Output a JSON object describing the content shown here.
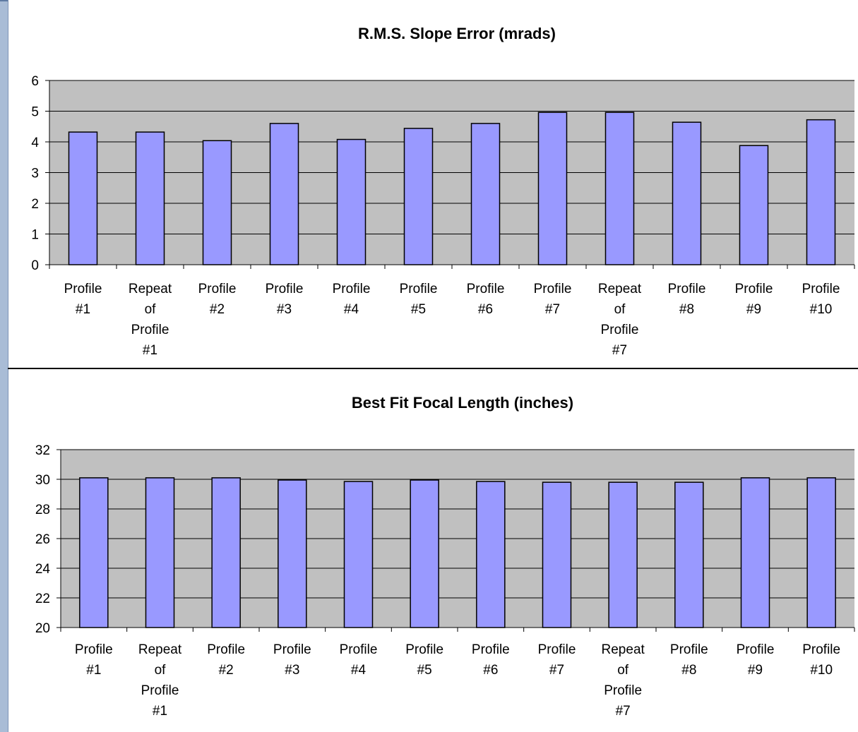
{
  "chart_data": [
    {
      "type": "bar",
      "title": "R.M.S. Slope Error (mrads)",
      "categories": [
        "Profile #1",
        "Repeat of Profile #1",
        "Profile #2",
        "Profile #3",
        "Profile #4",
        "Profile #5",
        "Profile #6",
        "Profile #7",
        "Repeat of Profile #7",
        "Profile #8",
        "Profile #9",
        "Profile #10"
      ],
      "category_lines": [
        [
          "Profile",
          "#1"
        ],
        [
          "Repeat",
          "of",
          "Profile",
          "#1"
        ],
        [
          "Profile",
          "#2"
        ],
        [
          "Profile",
          "#3"
        ],
        [
          "Profile",
          "#4"
        ],
        [
          "Profile",
          "#5"
        ],
        [
          "Profile",
          "#6"
        ],
        [
          "Profile",
          "#7"
        ],
        [
          "Repeat",
          "of",
          "Profile",
          "#7"
        ],
        [
          "Profile",
          "#8"
        ],
        [
          "Profile",
          "#9"
        ],
        [
          "Profile",
          "#10"
        ]
      ],
      "values": [
        4.32,
        4.32,
        4.04,
        4.6,
        4.08,
        4.44,
        4.6,
        4.96,
        4.96,
        4.64,
        3.88,
        4.72
      ],
      "ylim": [
        0,
        6
      ],
      "yticks": [
        0,
        1,
        2,
        3,
        4,
        5,
        6
      ],
      "xlabel": "",
      "ylabel": "",
      "grid": true,
      "legend": "none",
      "colors": {
        "bar": "#9999ff",
        "plot_bg": "#c0c0c0",
        "bar_edge": "#000000"
      }
    },
    {
      "type": "bar",
      "title": "Best Fit Focal Length (inches)",
      "categories": [
        "Profile #1",
        "Repeat of Profile #1",
        "Profile #2",
        "Profile #3",
        "Profile #4",
        "Profile #5",
        "Profile #6",
        "Profile #7",
        "Repeat of Profile #7",
        "Profile #8",
        "Profile #9",
        "Profile #10"
      ],
      "category_lines": [
        [
          "Profile",
          "#1"
        ],
        [
          "Repeat",
          "of",
          "Profile",
          "#1"
        ],
        [
          "Profile",
          "#2"
        ],
        [
          "Profile",
          "#3"
        ],
        [
          "Profile",
          "#4"
        ],
        [
          "Profile",
          "#5"
        ],
        [
          "Profile",
          "#6"
        ],
        [
          "Profile",
          "#7"
        ],
        [
          "Repeat",
          "of",
          "Profile",
          "#7"
        ],
        [
          "Profile",
          "#8"
        ],
        [
          "Profile",
          "#9"
        ],
        [
          "Profile",
          "#10"
        ]
      ],
      "values": [
        30.1,
        30.1,
        30.1,
        29.95,
        29.85,
        29.95,
        29.85,
        29.8,
        29.8,
        29.8,
        30.1,
        30.1
      ],
      "ylim": [
        20,
        32
      ],
      "yticks": [
        20,
        22,
        24,
        26,
        28,
        30,
        32
      ],
      "xlabel": "",
      "ylabel": "",
      "grid": true,
      "legend": "none",
      "colors": {
        "bar": "#9999ff",
        "plot_bg": "#c0c0c0",
        "bar_edge": "#000000"
      }
    }
  ]
}
